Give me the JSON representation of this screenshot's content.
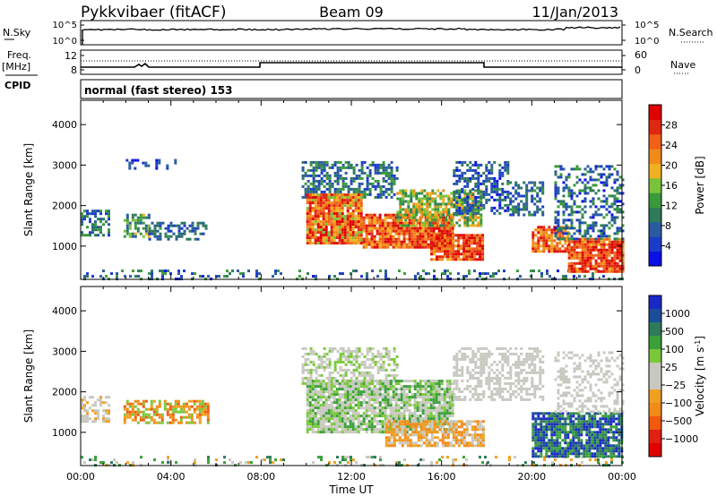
{
  "header": {
    "title": "Pykkvibaer (fitACF)",
    "beam": "Beam 09",
    "date": "11/Jan/2013"
  },
  "status_panels": {
    "nsky": {
      "label": "N.Sky",
      "ticks": [
        "10^5",
        "10^0"
      ],
      "right_label": "N.Search",
      "right_ticks": [
        "10^5",
        "10^0"
      ]
    },
    "freq": {
      "label_line1": "Freq.",
      "label_line2": "[MHz]",
      "ticks": [
        "12",
        "8"
      ],
      "right_label": "Nave",
      "right_ticks": [
        "60",
        "0"
      ]
    },
    "cpid": {
      "label": "CPID",
      "mode": "normal (fast stereo) 153"
    }
  },
  "chart_data": [
    {
      "type": "heatmap",
      "panel": "power",
      "ylabel": "Slant Range [km]",
      "ylim": [
        180,
        4600
      ],
      "yticks": [
        1000,
        2000,
        3000,
        4000
      ],
      "xlim": [
        0,
        24
      ],
      "xticks": [
        "00:00",
        "04:00",
        "08:00",
        "12:00",
        "16:00",
        "20:00",
        "00:00"
      ],
      "colorbar": {
        "label": "Power [dB]",
        "ticks": [
          4,
          8,
          12,
          16,
          20,
          24,
          28
        ],
        "range": [
          0,
          32
        ],
        "colors": [
          "#0a10e6",
          "#1a3cc8",
          "#2a5aa0",
          "#2e7a5a",
          "#3a9a3a",
          "#7ac23a",
          "#f0b020",
          "#f08a18",
          "#f06018",
          "#e02810",
          "#e00000"
        ]
      },
      "regions": [
        {
          "t0": 0.0,
          "t1": 24.0,
          "r0": 190,
          "r1": 420,
          "vmin": 2,
          "vmax": 14,
          "density": 0.22
        },
        {
          "t0": 0.0,
          "t1": 1.2,
          "r0": 1300,
          "r1": 1900,
          "vmin": 4,
          "vmax": 14,
          "density": 0.55
        },
        {
          "t0": 1.9,
          "t1": 3.0,
          "r0": 1250,
          "r1": 1800,
          "vmin": 6,
          "vmax": 18,
          "density": 0.6
        },
        {
          "t0": 3.0,
          "t1": 5.6,
          "r0": 1200,
          "r1": 1600,
          "vmin": 4,
          "vmax": 12,
          "density": 0.55
        },
        {
          "t0": 2.0,
          "t1": 4.2,
          "r0": 2900,
          "r1": 3150,
          "vmin": 2,
          "vmax": 8,
          "density": 0.25
        },
        {
          "t0": 9.8,
          "t1": 14.0,
          "r0": 2200,
          "r1": 3100,
          "vmin": 4,
          "vmax": 14,
          "density": 0.55
        },
        {
          "t0": 10.0,
          "t1": 12.5,
          "r0": 1100,
          "r1": 2300,
          "vmin": 16,
          "vmax": 32,
          "density": 0.92
        },
        {
          "t0": 12.5,
          "t1": 16.5,
          "r0": 1000,
          "r1": 1800,
          "vmin": 18,
          "vmax": 32,
          "density": 0.9
        },
        {
          "t0": 14.0,
          "t1": 17.8,
          "r0": 1500,
          "r1": 2400,
          "vmin": 10,
          "vmax": 22,
          "density": 0.7
        },
        {
          "t0": 15.5,
          "t1": 17.8,
          "r0": 650,
          "r1": 1300,
          "vmin": 20,
          "vmax": 32,
          "density": 0.92
        },
        {
          "t0": 16.5,
          "t1": 19.0,
          "r0": 1800,
          "r1": 3100,
          "vmin": 2,
          "vmax": 12,
          "density": 0.55
        },
        {
          "t0": 19.0,
          "t1": 20.5,
          "r0": 1800,
          "r1": 2600,
          "vmin": 4,
          "vmax": 12,
          "density": 0.5
        },
        {
          "t0": 20.0,
          "t1": 21.6,
          "r0": 900,
          "r1": 1500,
          "vmin": 18,
          "vmax": 32,
          "density": 0.8
        },
        {
          "t0": 21.6,
          "t1": 24.0,
          "r0": 350,
          "r1": 1200,
          "vmin": 20,
          "vmax": 32,
          "density": 0.88
        },
        {
          "t0": 21.0,
          "t1": 24.0,
          "r0": 1200,
          "r1": 3000,
          "vmin": 2,
          "vmax": 14,
          "density": 0.4
        }
      ]
    },
    {
      "type": "heatmap",
      "panel": "velocity",
      "ylabel": "Slant Range [km]",
      "ylim": [
        180,
        4600
      ],
      "yticks": [
        1000,
        2000,
        3000,
        4000
      ],
      "xlim": [
        0,
        24
      ],
      "xticks": [
        "00:00",
        "04:00",
        "08:00",
        "12:00",
        "16:00",
        "20:00",
        "00:00"
      ],
      "xlabel": "Time UT",
      "colorbar": {
        "label": "Velocity [m s^-1]",
        "ticks": [
          "1000",
          "500",
          "100",
          "25",
          "−25",
          "−100",
          "−500",
          "−1000"
        ],
        "colors": [
          "#1a28c8",
          "#1a4e9a",
          "#2e7a5a",
          "#3aa03a",
          "#7ac83a",
          "#c8c8c0",
          "#c8c8c0",
          "#f0a020",
          "#f08a18",
          "#f05a10",
          "#e02010",
          "#e00000"
        ]
      },
      "regions": [
        {
          "t0": 0.0,
          "t1": 24.0,
          "r0": 190,
          "r1": 420,
          "cls": [
            6,
            7,
            3,
            2
          ],
          "density": 0.2
        },
        {
          "t0": 0.0,
          "t1": 1.2,
          "r0": 1300,
          "r1": 1900,
          "cls": [
            6,
            7,
            5
          ],
          "density": 0.55
        },
        {
          "t0": 1.9,
          "t1": 5.6,
          "r0": 1250,
          "r1": 1800,
          "cls": [
            8,
            9,
            7,
            4
          ],
          "density": 0.6
        },
        {
          "t0": 9.8,
          "t1": 14.0,
          "r0": 2200,
          "r1": 3100,
          "cls": [
            6,
            5,
            4
          ],
          "density": 0.55
        },
        {
          "t0": 10.0,
          "t1": 16.5,
          "r0": 1000,
          "r1": 2300,
          "cls": [
            6,
            5,
            3,
            4
          ],
          "density": 0.85
        },
        {
          "t0": 13.5,
          "t1": 17.8,
          "r0": 700,
          "r1": 1300,
          "cls": [
            8,
            7,
            6
          ],
          "density": 0.75
        },
        {
          "t0": 16.5,
          "t1": 20.5,
          "r0": 1800,
          "r1": 3100,
          "cls": [
            6,
            5
          ],
          "density": 0.5
        },
        {
          "t0": 20.0,
          "t1": 24.0,
          "r0": 400,
          "r1": 1500,
          "cls": [
            2,
            1,
            0,
            3
          ],
          "density": 0.85
        },
        {
          "t0": 21.0,
          "t1": 24.0,
          "r0": 1500,
          "r1": 3000,
          "cls": [
            6,
            5
          ],
          "density": 0.35
        }
      ]
    }
  ]
}
